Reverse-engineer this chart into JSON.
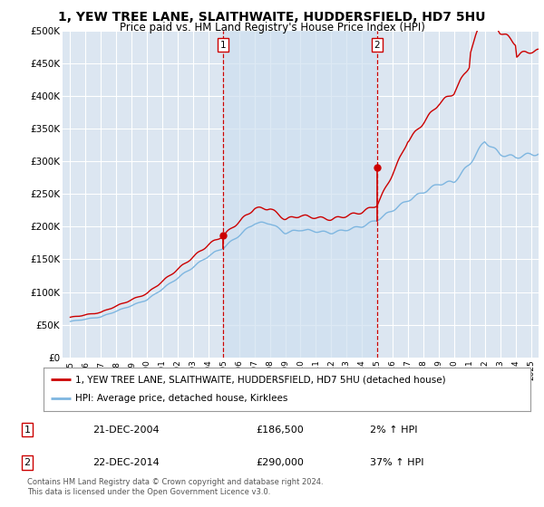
{
  "title": "1, YEW TREE LANE, SLAITHWAITE, HUDDERSFIELD, HD7 5HU",
  "subtitle": "Price paid vs. HM Land Registry's House Price Index (HPI)",
  "title_fontsize": 10,
  "subtitle_fontsize": 8.5,
  "background_color": "#ffffff",
  "plot_background": "#dce6f1",
  "grid_color": "#ffffff",
  "highlight_color": "#cfe0f0",
  "legend_label_red": "1, YEW TREE LANE, SLAITHWAITE, HUDDERSFIELD, HD7 5HU (detached house)",
  "legend_label_blue": "HPI: Average price, detached house, Kirklees",
  "footer": "Contains HM Land Registry data © Crown copyright and database right 2024.\nThis data is licensed under the Open Government Licence v3.0.",
  "sale1_date": "21-DEC-2004",
  "sale1_price": "£186,500",
  "sale1_hpi": "2% ↑ HPI",
  "sale2_date": "22-DEC-2014",
  "sale2_price": "£290,000",
  "sale2_hpi": "37% ↑ HPI",
  "sale1_x": 2004.97,
  "sale1_y": 186500,
  "sale2_x": 2014.97,
  "sale2_y": 290000,
  "ylim": [
    0,
    500000
  ],
  "xlim_left": 1994.5,
  "xlim_right": 2025.5,
  "yticks": [
    0,
    50000,
    100000,
    150000,
    200000,
    250000,
    300000,
    350000,
    400000,
    450000,
    500000
  ],
  "ytick_labels": [
    "£0",
    "£50K",
    "£100K",
    "£150K",
    "£200K",
    "£250K",
    "£300K",
    "£350K",
    "£400K",
    "£450K",
    "£500K"
  ],
  "xtick_years": [
    1995,
    1996,
    1997,
    1998,
    1999,
    2000,
    2001,
    2002,
    2003,
    2004,
    2005,
    2006,
    2007,
    2008,
    2009,
    2010,
    2011,
    2012,
    2013,
    2014,
    2015,
    2016,
    2017,
    2018,
    2019,
    2020,
    2021,
    2022,
    2023,
    2024,
    2025
  ],
  "sale_color": "#cc0000",
  "hpi_color": "#7eb6e0",
  "red_color": "#cc0000",
  "vline_color": "#cc0000"
}
